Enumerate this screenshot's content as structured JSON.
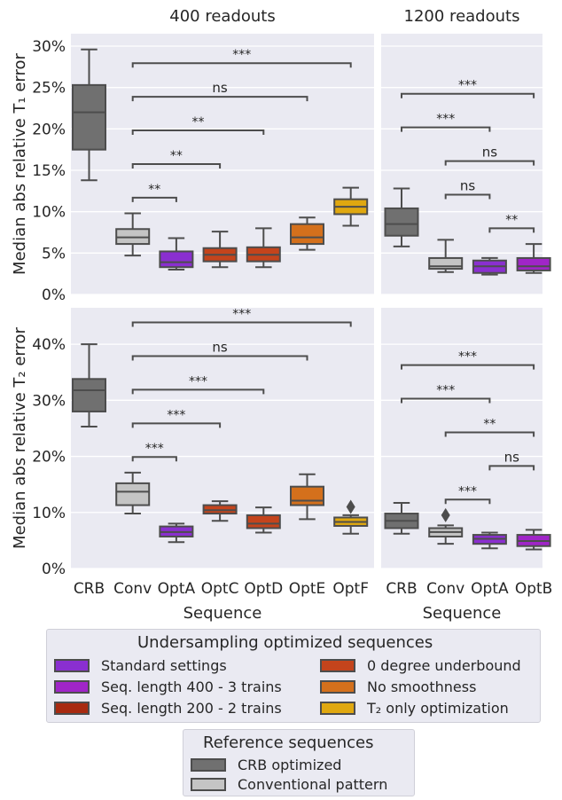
{
  "chart_data": [
    {
      "id": "t1_400",
      "type": "box",
      "title": "400 readouts",
      "ylabel": "Median abs relative T₁ error",
      "ylim": [
        0,
        31.5
      ],
      "yticks": [
        0,
        5,
        10,
        15,
        20,
        25,
        30
      ],
      "ytick_labels": [
        "0%",
        "5%",
        "10%",
        "15%",
        "20%",
        "25%",
        "30%"
      ],
      "xlabel": "",
      "categories": [
        "CRB",
        "Conv",
        "OptA",
        "OptC",
        "OptD",
        "OptE",
        "OptF"
      ],
      "colors": [
        "#707070",
        "#c4c4c4",
        "#8a2fd0",
        "#c4441c",
        "#c4441c",
        "#d4701c",
        "#e0a810"
      ],
      "boxes": [
        {
          "whislo": 13.8,
          "q1": 17.5,
          "med": 22.0,
          "q3": 25.3,
          "whishi": 29.6,
          "fliers": []
        },
        {
          "whislo": 4.7,
          "q1": 6.1,
          "med": 6.9,
          "q3": 7.9,
          "whishi": 9.8,
          "fliers": []
        },
        {
          "whislo": 3.0,
          "q1": 3.3,
          "med": 3.9,
          "q3": 5.2,
          "whishi": 6.8,
          "fliers": []
        },
        {
          "whislo": 3.3,
          "q1": 4.0,
          "med": 4.8,
          "q3": 5.6,
          "whishi": 7.6,
          "fliers": []
        },
        {
          "whislo": 3.3,
          "q1": 4.0,
          "med": 4.8,
          "q3": 5.7,
          "whishi": 8.0,
          "fliers": []
        },
        {
          "whislo": 5.4,
          "q1": 6.1,
          "med": 6.9,
          "q3": 8.5,
          "whishi": 9.3,
          "fliers": []
        },
        {
          "whislo": 8.3,
          "q1": 9.7,
          "med": 10.6,
          "q3": 11.5,
          "whishi": 12.9,
          "fliers": []
        }
      ],
      "annotations": [
        {
          "from": 1,
          "to": 2,
          "label": "**"
        },
        {
          "from": 1,
          "to": 3,
          "label": "**"
        },
        {
          "from": 1,
          "to": 4,
          "label": "**"
        },
        {
          "from": 1,
          "to": 5,
          "label": "ns"
        },
        {
          "from": 1,
          "to": 6,
          "label": "***"
        }
      ]
    },
    {
      "id": "t1_1200",
      "type": "box",
      "title": "1200 readouts",
      "ylabel": "",
      "ylim": [
        0,
        31.5
      ],
      "yticks": [
        0,
        5,
        10,
        15,
        20,
        25,
        30
      ],
      "xlabel": "",
      "categories": [
        "CRB",
        "Conv",
        "OptA",
        "OptB"
      ],
      "colors": [
        "#707070",
        "#c4c4c4",
        "#8a2fd0",
        "#a025c8"
      ],
      "boxes": [
        {
          "whislo": 5.8,
          "q1": 7.1,
          "med": 8.5,
          "q3": 10.4,
          "whishi": 12.8,
          "fliers": []
        },
        {
          "whislo": 2.7,
          "q1": 3.1,
          "med": 3.4,
          "q3": 4.4,
          "whishi": 6.6,
          "fliers": []
        },
        {
          "whislo": 2.4,
          "q1": 2.6,
          "med": 3.4,
          "q3": 4.1,
          "whishi": 4.4,
          "fliers": []
        },
        {
          "whislo": 2.6,
          "q1": 2.9,
          "med": 3.4,
          "q3": 4.4,
          "whishi": 6.1,
          "fliers": []
        }
      ],
      "annotations": [
        {
          "from": 2,
          "to": 3,
          "label": "**"
        },
        {
          "from": 1,
          "to": 2,
          "label": "ns"
        },
        {
          "from": 1,
          "to": 3,
          "label": "ns"
        },
        {
          "from": 0,
          "to": 2,
          "label": "***"
        },
        {
          "from": 0,
          "to": 3,
          "label": "***"
        }
      ]
    },
    {
      "id": "t2_400",
      "type": "box",
      "title": "",
      "ylabel": "Median abs relative T₂ error",
      "ylim": [
        0,
        46.5
      ],
      "yticks": [
        0,
        10,
        20,
        30,
        40
      ],
      "ytick_labels": [
        "0%",
        "10%",
        "20%",
        "30%",
        "40%"
      ],
      "xlabel": "Sequence",
      "categories": [
        "CRB",
        "Conv",
        "OptA",
        "OptC",
        "OptD",
        "OptE",
        "OptF"
      ],
      "colors": [
        "#707070",
        "#c4c4c4",
        "#8a2fd0",
        "#c4441c",
        "#c4441c",
        "#d4701c",
        "#e0a810"
      ],
      "boxes": [
        {
          "whislo": 25.3,
          "q1": 28.0,
          "med": 31.8,
          "q3": 33.8,
          "whishi": 40.0,
          "fliers": []
        },
        {
          "whislo": 9.8,
          "q1": 11.3,
          "med": 13.7,
          "q3": 15.2,
          "whishi": 17.1,
          "fliers": []
        },
        {
          "whislo": 4.7,
          "q1": 5.7,
          "med": 6.5,
          "q3": 7.5,
          "whishi": 8.0,
          "fliers": []
        },
        {
          "whislo": 8.5,
          "q1": 9.8,
          "med": 10.4,
          "q3": 11.3,
          "whishi": 12.0,
          "fliers": []
        },
        {
          "whislo": 6.4,
          "q1": 7.2,
          "med": 8.0,
          "q3": 9.5,
          "whishi": 10.9,
          "fliers": []
        },
        {
          "whislo": 8.8,
          "q1": 11.3,
          "med": 12.1,
          "q3": 14.6,
          "whishi": 16.8,
          "fliers": []
        },
        {
          "whislo": 6.2,
          "q1": 7.6,
          "med": 8.3,
          "q3": 9.1,
          "whishi": 9.5,
          "fliers": [
            11.0
          ]
        }
      ],
      "annotations": [
        {
          "from": 1,
          "to": 2,
          "label": "***"
        },
        {
          "from": 1,
          "to": 3,
          "label": "***"
        },
        {
          "from": 1,
          "to": 4,
          "label": "***"
        },
        {
          "from": 1,
          "to": 5,
          "label": "ns"
        },
        {
          "from": 1,
          "to": 6,
          "label": "***"
        }
      ]
    },
    {
      "id": "t2_1200",
      "type": "box",
      "title": "",
      "ylabel": "",
      "ylim": [
        0,
        46.5
      ],
      "yticks": [
        0,
        10,
        20,
        30,
        40
      ],
      "xlabel": "Sequence",
      "categories": [
        "CRB",
        "Conv",
        "OptA",
        "OptB"
      ],
      "colors": [
        "#707070",
        "#c4c4c4",
        "#8a2fd0",
        "#a025c8"
      ],
      "boxes": [
        {
          "whislo": 6.2,
          "q1": 7.2,
          "med": 8.5,
          "q3": 9.8,
          "whishi": 11.7,
          "fliers": []
        },
        {
          "whislo": 4.4,
          "q1": 5.7,
          "med": 6.5,
          "q3": 7.2,
          "whishi": 7.7,
          "fliers": [
            9.5
          ]
        },
        {
          "whislo": 3.6,
          "q1": 4.4,
          "med": 5.3,
          "q3": 6.0,
          "whishi": 6.4,
          "fliers": []
        },
        {
          "whislo": 3.4,
          "q1": 4.0,
          "med": 4.9,
          "q3": 6.0,
          "whishi": 6.9,
          "fliers": []
        }
      ],
      "annotations": [
        {
          "from": 1,
          "to": 2,
          "label": "***"
        },
        {
          "from": 2,
          "to": 3,
          "label": "ns"
        },
        {
          "from": 1,
          "to": 3,
          "label": "**"
        },
        {
          "from": 0,
          "to": 2,
          "label": "***"
        },
        {
          "from": 0,
          "to": 3,
          "label": "***"
        }
      ]
    }
  ],
  "legend_optimized": {
    "title": "Undersampling optimized sequences",
    "items": [
      {
        "label": "Standard settings",
        "color": "#8a2fd0"
      },
      {
        "label": "Seq. length 400 - 3 trains",
        "color": "#a025c8"
      },
      {
        "label": "Seq. length 200 - 2 trains",
        "color": "#a82a10"
      },
      {
        "label": "0 degree underbound",
        "color": "#c4441c"
      },
      {
        "label": "No smoothness",
        "color": "#d4701c"
      },
      {
        "label": "T₂ only optimization",
        "color": "#e0a810"
      }
    ]
  },
  "legend_reference": {
    "title": "Reference sequences",
    "items": [
      {
        "label": "CRB optimized",
        "color": "#707070"
      },
      {
        "label": "Conventional pattern",
        "color": "#c4c4c4"
      }
    ]
  }
}
